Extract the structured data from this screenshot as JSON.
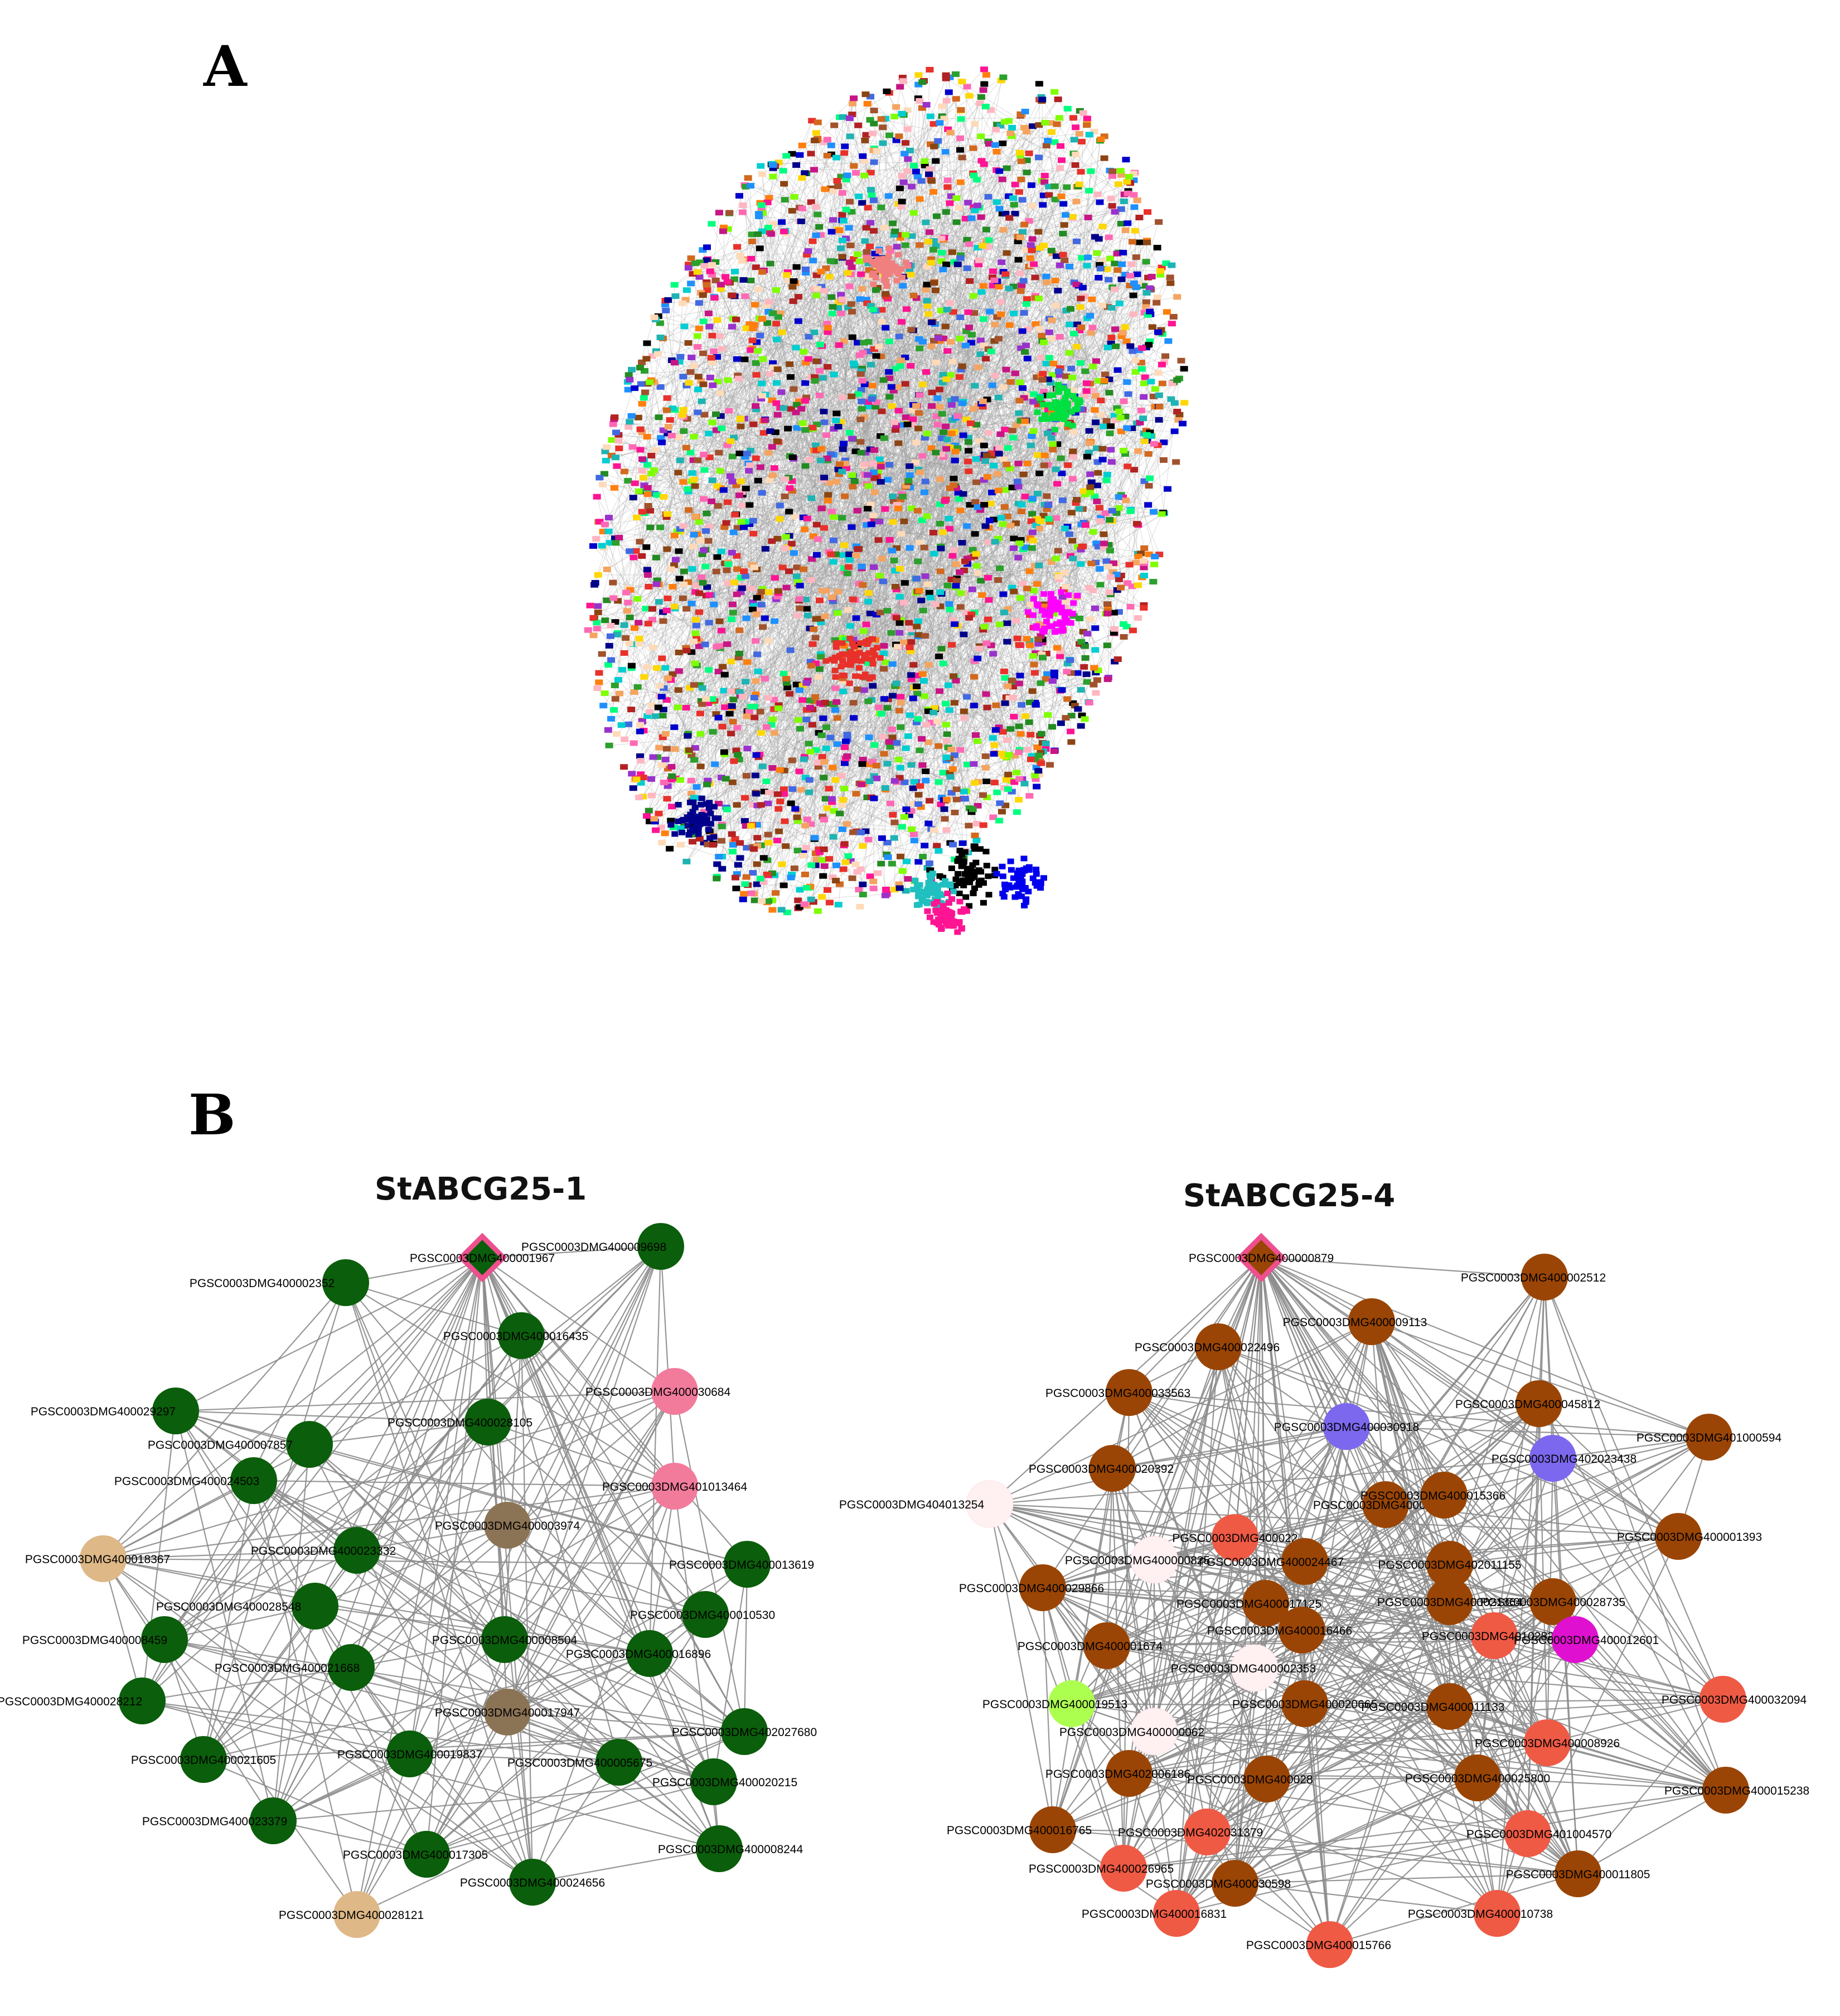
{
  "panels": {
    "a_label": "A",
    "b_label": "B"
  },
  "networks": [
    {
      "title": "StABCG25-1",
      "hub": "PGSC0003DMG400001967",
      "hub_color": "#0b5e0b",
      "hub_border": "#ee4f8e",
      "nodes": [
        {
          "label": "PGSC0003DMG400009698",
          "color": "#0b5e0b"
        },
        {
          "label": "PGSC0003DMG400002352",
          "color": "#0b5e0b"
        },
        {
          "label": "PGSC0003DMG400016435",
          "color": "#0b5e0b"
        },
        {
          "label": "PGSC0003DMG400030684",
          "color": "#f27b9b"
        },
        {
          "label": "PGSC0003DMG400029297",
          "color": "#0b5e0b"
        },
        {
          "label": "PGSC0003DMG400028105",
          "color": "#0b5e0b"
        },
        {
          "label": "PGSC0003DMG400007857",
          "color": "#0b5e0b"
        },
        {
          "label": "PGSC0003DMG401013464",
          "color": "#f27b9b"
        },
        {
          "label": "PGSC0003DMG400024503",
          "color": "#0b5e0b"
        },
        {
          "label": "PGSC0003DMG400003974",
          "color": "#8b7355"
        },
        {
          "label": "PGSC0003DMG400018367",
          "color": "#deb887"
        },
        {
          "label": "PGSC0003DMG400023332",
          "color": "#0b5e0b"
        },
        {
          "label": "PGSC0003DMG400013619",
          "color": "#0b5e0b"
        },
        {
          "label": "PGSC0003DMG400028548",
          "color": "#0b5e0b"
        },
        {
          "label": "PGSC0003DMG400010530",
          "color": "#0b5e0b"
        },
        {
          "label": "PGSC0003DMG400008459",
          "color": "#0b5e0b"
        },
        {
          "label": "PGSC0003DMG400008504",
          "color": "#0b5e0b"
        },
        {
          "label": "PGSC0003DMG400016896",
          "color": "#0b5e0b"
        },
        {
          "label": "PGSC0003DMG400021668",
          "color": "#0b5e0b"
        },
        {
          "label": "PGSC0003DMG400028212",
          "color": "#0b5e0b"
        },
        {
          "label": "PGSC0003DMG400017947",
          "color": "#8b7355"
        },
        {
          "label": "PGSC0003DMG402027680",
          "color": "#0b5e0b"
        },
        {
          "label": "PGSC0003DMG400021605",
          "color": "#0b5e0b"
        },
        {
          "label": "PGSC0003DMG400019837",
          "color": "#0b5e0b"
        },
        {
          "label": "PGSC0003DMG400005675",
          "color": "#0b5e0b"
        },
        {
          "label": "PGSC0003DMG400020215",
          "color": "#0b5e0b"
        },
        {
          "label": "PGSC0003DMG400023379",
          "color": "#0b5e0b"
        },
        {
          "label": "PGSC0003DMG400017305",
          "color": "#0b5e0b"
        },
        {
          "label": "PGSC0003DMG400008244",
          "color": "#0b5e0b"
        },
        {
          "label": "PGSC0003DMG400024656",
          "color": "#0b5e0b"
        },
        {
          "label": "PGSC0003DMG400028121",
          "color": "#deb887"
        }
      ]
    },
    {
      "title": "StABCG25-4",
      "hub": "PGSC0003DMG400000879",
      "hub_color": "#9a4505",
      "hub_border": "#ee4f8e",
      "nodes": [
        {
          "label": "PGSC0003DMG400002512",
          "color": "#9a4505"
        },
        {
          "label": "PGSC0003DMG400022496",
          "color": "#9a4505"
        },
        {
          "label": "PGSC0003DMG400009113",
          "color": "#9a4505"
        },
        {
          "label": "PGSC0003DMG400033563",
          "color": "#9a4505"
        },
        {
          "label": "PGSC0003DMG400045812",
          "color": "#9a4505"
        },
        {
          "label": "PGSC0003DMG400030918",
          "color": "#7b68ee"
        },
        {
          "label": "PGSC0003DMG401000594",
          "color": "#9a4505"
        },
        {
          "label": "PGSC0003DMG402023438",
          "color": "#7b68ee"
        },
        {
          "label": "PGSC0003DMG400020392",
          "color": "#9a4505"
        },
        {
          "label": "PGSC0003DMG404013254",
          "color": "#fff0f2"
        },
        {
          "label": "PGSC0003DMG400006222",
          "color": "#9a4505"
        },
        {
          "label": "PGSC0003DMG400015366",
          "color": "#9a4505"
        },
        {
          "label": "PGSC0003DMG400022",
          "color": "#ef5a45"
        },
        {
          "label": "PGSC0003DMG400001393",
          "color": "#9a4505"
        },
        {
          "label": "PGSC0003DMG400000825",
          "color": "#fff0f2"
        },
        {
          "label": "PGSC0003DMG400024467",
          "color": "#9a4505"
        },
        {
          "label": "PGSC0003DMG402011155",
          "color": "#9a4505"
        },
        {
          "label": "PGSC0003DMG400029866",
          "color": "#9a4505"
        },
        {
          "label": "PGSC0003DMG400017125",
          "color": "#9a4505"
        },
        {
          "label": "PGSC0003DMG400021364",
          "color": "#9a4505"
        },
        {
          "label": "PGSC0003DMG400028735",
          "color": "#9a4505"
        },
        {
          "label": "PGSC0003DMG400016466",
          "color": "#9a4505"
        },
        {
          "label": "PGSC0003DMG401028219",
          "color": "#ef5a45"
        },
        {
          "label": "PGSC0003DMG400012601",
          "color": "#e010d0"
        },
        {
          "label": "PGSC0003DMG400001674",
          "color": "#9a4505"
        },
        {
          "label": "PGSC0003DMG400002353",
          "color": "#fff0f2"
        },
        {
          "label": "PGSC0003DMG400032094",
          "color": "#ef5a45"
        },
        {
          "label": "PGSC0003DMG400019513",
          "color": "#adff4f"
        },
        {
          "label": "PGSC0003DMG400020665",
          "color": "#9a4505"
        },
        {
          "label": "PGSC0003DMG400011133",
          "color": "#9a4505"
        },
        {
          "label": "PGSC0003DMG400000062",
          "color": "#fff0f2"
        },
        {
          "label": "PGSC0003DMG400008926",
          "color": "#ef5a45"
        },
        {
          "label": "PGSC0003DMG402006186",
          "color": "#9a4505"
        },
        {
          "label": "PGSC0003DMG400028",
          "color": "#9a4505"
        },
        {
          "label": "PGSC0003DMG400025800",
          "color": "#9a4505"
        },
        {
          "label": "PGSC0003DMG400015238",
          "color": "#9a4505"
        },
        {
          "label": "PGSC0003DMG400016765",
          "color": "#9a4505"
        },
        {
          "label": "PGSC0003DMG402031379",
          "color": "#ef5a45"
        },
        {
          "label": "PGSC0003DMG401004570",
          "color": "#ef5a45"
        },
        {
          "label": "PGSC0003DMG400026965",
          "color": "#ef5a45"
        },
        {
          "label": "PGSC0003DMG400030598",
          "color": "#9a4505"
        },
        {
          "label": "PGSC0003DMG400011805",
          "color": "#9a4505"
        },
        {
          "label": "PGSC0003DMG400016831",
          "color": "#ef5a45"
        },
        {
          "label": "PGSC0003DMG400010738",
          "color": "#ef5a45"
        },
        {
          "label": "PGSC0003DMG400015766",
          "color": "#ef5a45"
        }
      ]
    }
  ],
  "overview_palette": [
    "#e8312a",
    "#1fb3b3",
    "#ff7f0e",
    "#2ca02c",
    "#9932cc",
    "#ff1493",
    "#1e90ff",
    "#8b4513",
    "#ffd700",
    "#000000",
    "#0000cd",
    "#7fff00",
    "#b22222",
    "#00ced1",
    "#ff69b4",
    "#4169e1",
    "#228b22",
    "#f4a460",
    "#c71585",
    "#00008b",
    "#ffb6c1",
    "#ffdab9",
    "#d2691e",
    "#00ff7f",
    "#a0522d"
  ]
}
